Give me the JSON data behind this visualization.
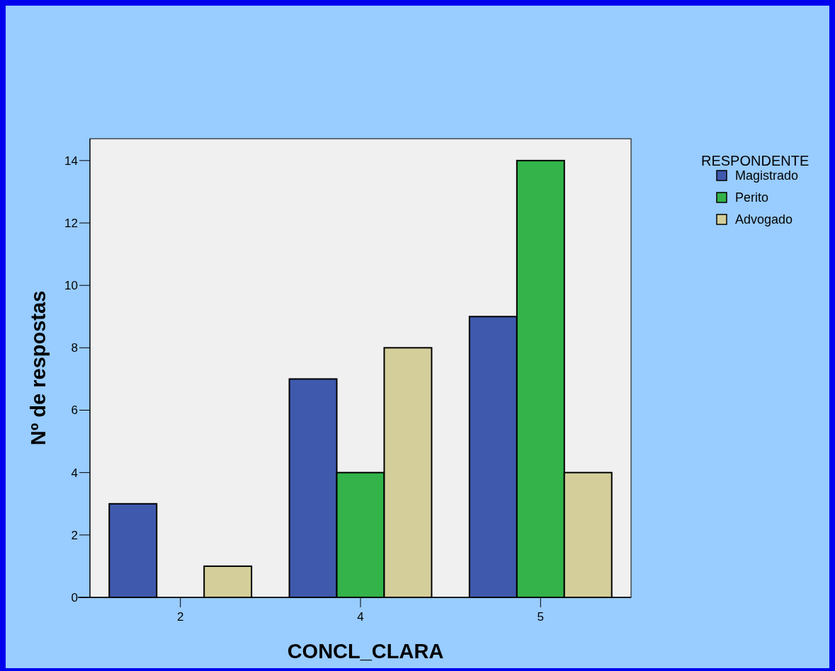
{
  "chart_data": {
    "type": "bar",
    "xlabel": "CONCL_CLARA",
    "ylabel": "Nº de respostas",
    "legend_title": "RESPONDENTE",
    "categories": [
      "2",
      "4",
      "5"
    ],
    "series": [
      {
        "name": "Magistrado",
        "color": "#3f59ad",
        "values": [
          3,
          7,
          9
        ]
      },
      {
        "name": "Perito",
        "color": "#33b34a",
        "values": [
          0,
          4,
          14
        ]
      },
      {
        "name": "Advogado",
        "color": "#d4cf9a",
        "values": [
          1,
          8,
          4
        ]
      }
    ],
    "ylim": [
      0,
      14.7
    ],
    "yticks": [
      0,
      2,
      4,
      6,
      8,
      10,
      12,
      14
    ],
    "grid": false,
    "legend": "top right"
  }
}
